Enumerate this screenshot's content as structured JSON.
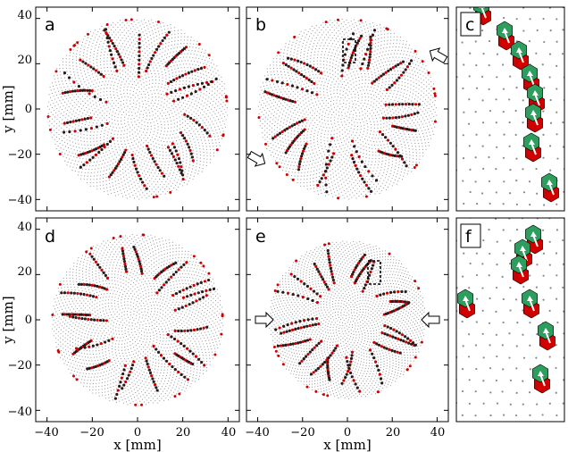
{
  "figure": {
    "x_axis_label": "x [mm]",
    "y_axis_label": "y [mm]",
    "x_ticks": [
      "−40",
      "−20",
      "0",
      "20",
      "40"
    ],
    "y_ticks": [
      "40",
      "20",
      "0",
      "−20",
      "−40"
    ],
    "panels": [
      {
        "letter": "a",
        "kind": "disk",
        "radius_mm": 40,
        "arrows": "none",
        "inset_box": false
      },
      {
        "letter": "b",
        "kind": "disk",
        "radius_mm": 40,
        "arrows": "diagonal",
        "inset_box": true
      },
      {
        "letter": "c",
        "kind": "zoom"
      },
      {
        "letter": "d",
        "kind": "disk",
        "radius_mm": 38,
        "arrows": "none",
        "inset_box": false
      },
      {
        "letter": "e",
        "kind": "disk",
        "radius_mm": 35,
        "arrows": "horizontal",
        "inset_box": true
      },
      {
        "letter": "f",
        "kind": "zoom"
      }
    ],
    "colors": {
      "lattice": "#8a8a8a",
      "defect_dark": "#2a1a1a",
      "defect_red": "#d00000",
      "defect_green": "#2e9e5e",
      "axis": "#000000"
    }
  },
  "chart_data": {
    "type": "scatter",
    "xlabel": "x [mm]",
    "ylabel": "y [mm]",
    "xlim": [
      -45,
      45
    ],
    "ylim": [
      -45,
      45
    ],
    "x_ticks": [
      -40,
      -20,
      0,
      20,
      40
    ],
    "y_ticks": [
      -40,
      -20,
      0,
      20,
      40
    ]
  }
}
